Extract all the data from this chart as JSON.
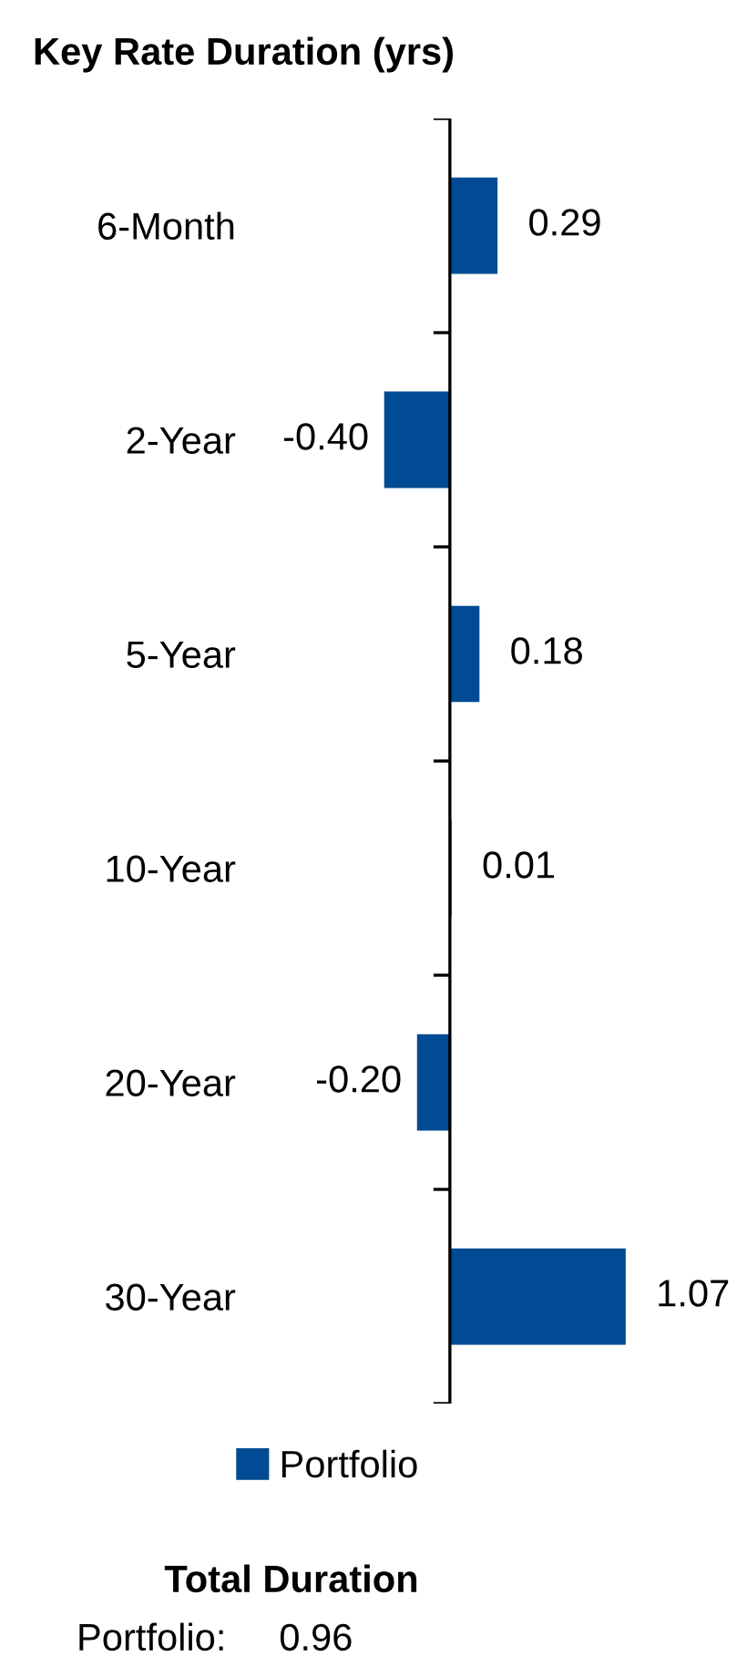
{
  "chart_data": {
    "type": "bar",
    "orientation": "horizontal",
    "title": "Key Rate Duration (yrs)",
    "categories": [
      "6-Month",
      "2-Year",
      "5-Year",
      "10-Year",
      "20-Year",
      "30-Year"
    ],
    "series": [
      {
        "name": "Portfolio",
        "color": "#004b93",
        "values": [
          0.29,
          -0.4,
          0.18,
          0.01,
          -0.2,
          1.07
        ],
        "value_labels": [
          "0.29",
          "-0.40",
          "0.18",
          "0.01",
          "-0.20",
          "1.07"
        ]
      }
    ],
    "legend": "bottom",
    "grid": false,
    "annotations": [
      "Total Duration",
      "Portfolio:     0.96"
    ]
  }
}
